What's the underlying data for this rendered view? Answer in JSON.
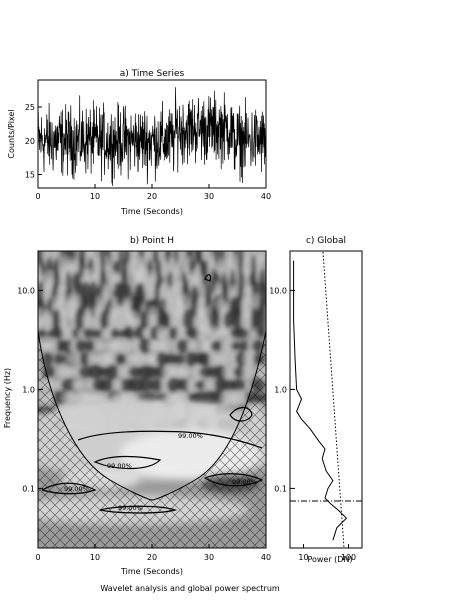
{
  "caption": "Wavelet analysis and global power spectrum",
  "chart_data": [
    {
      "type": "line",
      "title": "a) Time Series",
      "xlabel": "Time (Seconds)",
      "ylabel": "Counts/Pixel",
      "xlim": [
        0,
        40
      ],
      "ylim": [
        13,
        29
      ],
      "xticks": [
        "0",
        "10",
        "20",
        "30",
        "40"
      ],
      "yticks": [
        "15",
        "20",
        "25"
      ],
      "series_note": "noisy signal, mean ~20, std ~2.5, slight rise 25-33 s",
      "sample_values": [
        20.5,
        18.2,
        22.1,
        19.4,
        21.0,
        17.6,
        23.4,
        20.1,
        18.8,
        21.7,
        19.0,
        22.6,
        20.3,
        16.9,
        21.9,
        19.8,
        23.0,
        18.1,
        20.6,
        21.3
      ]
    },
    {
      "type": "heatmap",
      "title": "b) Point H",
      "xlabel": "Time (Seconds)",
      "ylabel": "Frequency (Hz)",
      "xlim": [
        0,
        40
      ],
      "ylim": [
        0.025,
        25
      ],
      "yscale": "log",
      "xticks": [
        "0",
        "10",
        "20",
        "30",
        "40"
      ],
      "yticks": [
        "0.1",
        "1.0",
        "10.0"
      ],
      "contour_labels": [
        "99.00%",
        "99.00%",
        "99.00%",
        "99.00%",
        "99.00%"
      ],
      "cone_of_influence": "hatched region outside the U-shaped cone"
    },
    {
      "type": "line",
      "title": "c) Global",
      "xlabel": "Power (DN)",
      "ylabel": "",
      "xscale": "log",
      "xlim": [
        5,
        200
      ],
      "xticks": [
        "10",
        "100"
      ],
      "yticks": [
        "0.1",
        "1.0",
        "10.0"
      ],
      "global_spectrum": {
        "frequency_hz": [
          20.0,
          10.0,
          5.0,
          2.0,
          1.0,
          0.8,
          0.6,
          0.5,
          0.4,
          0.3,
          0.25,
          0.2,
          0.15,
          0.12,
          0.1,
          0.08,
          0.07,
          0.06,
          0.05,
          0.04,
          0.03
        ],
        "power_dn": [
          6,
          6,
          6,
          6.5,
          7,
          9,
          7,
          9,
          14,
          22,
          30,
          26,
          32,
          45,
          35,
          30,
          40,
          60,
          90,
          55,
          45
        ]
      },
      "significance_line": "dotted red-noise line",
      "dash_line_frequency_hz": 0.07
    }
  ]
}
